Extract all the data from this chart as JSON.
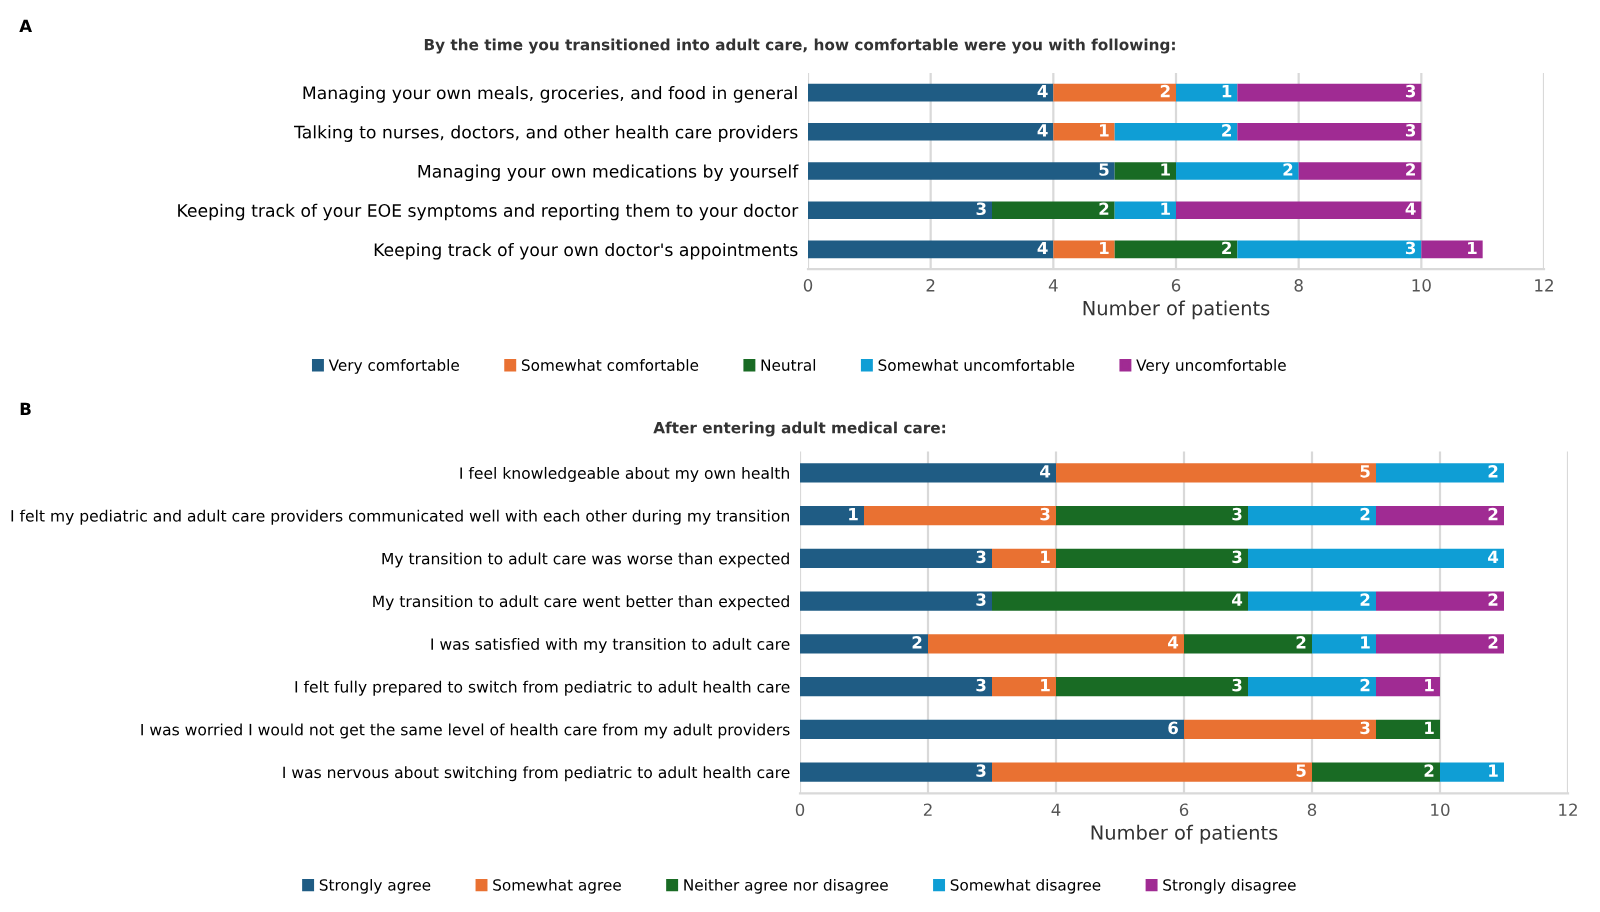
{
  "chart_data": [
    {
      "type": "bar",
      "orientation": "horizontal",
      "stacked": true,
      "title": "By the time you transitioned into adult care, how comfortable were you with following:",
      "xlabel": "Number of patients",
      "annotations": [
        "A"
      ],
      "categories": [
        "Managing your own meals, groceries, and food in general",
        "Talking to nurses, doctors, and other health care providers",
        "Managing your own medications by yourself",
        "Keeping track of your EOE symptoms and reporting them to your doctor",
        "Keeping track of your own doctor's appointments"
      ],
      "series": [
        {
          "name": "Very comfortable",
          "color": "#1f5c84",
          "values": [
            4,
            4,
            5,
            3,
            4
          ],
          "value_labels": [
            "4",
            "4",
            "5",
            "3",
            "4"
          ]
        },
        {
          "name": "Somewhat comfortable",
          "color": "#e97132",
          "values": [
            2,
            1,
            null,
            null,
            1
          ],
          "value_labels": [
            "2",
            "1",
            null,
            null,
            "1"
          ]
        },
        {
          "name": "Neutral",
          "color": "#196b24",
          "values": [
            null,
            null,
            1,
            2,
            2
          ],
          "value_labels": [
            null,
            null,
            "1",
            "2",
            "2"
          ]
        },
        {
          "name": "Somewhat uncomfortable",
          "color": "#0f9ed5",
          "values": [
            1,
            2,
            2,
            1,
            3
          ],
          "value_labels": [
            "1",
            "2",
            "2",
            "1",
            "3"
          ]
        },
        {
          "name": "Very uncomfortable",
          "color": "#a02b93",
          "values": [
            3,
            3,
            2,
            4,
            1
          ],
          "value_labels": [
            "3",
            "3",
            "2",
            "4",
            "1"
          ]
        }
      ],
      "xlim": [
        0,
        12
      ],
      "xticks": [
        0,
        2,
        4,
        6,
        8,
        10,
        12
      ],
      "grid": "x",
      "legend": "bottom"
    },
    {
      "type": "bar",
      "orientation": "horizontal",
      "stacked": true,
      "title": "After entering adult medical care:",
      "xlabel": "Number of patients",
      "annotations": [
        "B"
      ],
      "categories": [
        "I feel knowledgeable about my own health",
        "I felt my pediatric and adult care providers communicated well with each other during my transition",
        "My transition to adult care was worse than expected",
        "My transition to adult care went better than expected",
        "I was satisfied with my transition to adult care",
        "I felt fully prepared to switch from pediatric to adult health care",
        "I was worried I would not get the same level of health care from my adult providers",
        "I was nervous about switching from pediatric to adult health care"
      ],
      "series": [
        {
          "name": "Strongly agree",
          "color": "#1f5c84",
          "values": [
            4,
            1,
            3,
            3,
            2,
            3,
            6,
            3
          ],
          "value_labels": [
            "4",
            "1",
            "3",
            "3",
            "2",
            "3",
            "6",
            "3"
          ]
        },
        {
          "name": "Somewhat agree",
          "color": "#e97132",
          "values": [
            5,
            3,
            1,
            null,
            4,
            1,
            3,
            5
          ],
          "value_labels": [
            "5",
            "3",
            "1",
            null,
            "4",
            "1",
            "3",
            "5"
          ]
        },
        {
          "name": "Neither agree nor disagree",
          "color": "#196b24",
          "values": [
            null,
            3,
            3,
            4,
            2,
            3,
            1,
            2
          ],
          "value_labels": [
            null,
            "3",
            "3",
            "4",
            "2",
            "3",
            "1",
            "2"
          ]
        },
        {
          "name": "Somewhat disagree",
          "color": "#0f9ed5",
          "values": [
            2,
            2,
            4,
            2,
            1,
            2,
            null,
            1
          ],
          "value_labels": [
            "2",
            "2",
            "4",
            "2",
            "1",
            "2",
            null,
            "1"
          ]
        },
        {
          "name": "Strongly disagree",
          "color": "#a02b93",
          "values": [
            null,
            2,
            null,
            2,
            2,
            1,
            null,
            null
          ],
          "value_labels": [
            null,
            "2",
            null,
            "2",
            "2",
            "1",
            null,
            null
          ]
        }
      ],
      "xlim": [
        0,
        12
      ],
      "xticks": [
        0,
        2,
        4,
        6,
        8,
        10,
        12
      ],
      "grid": "x",
      "legend": "bottom"
    }
  ]
}
